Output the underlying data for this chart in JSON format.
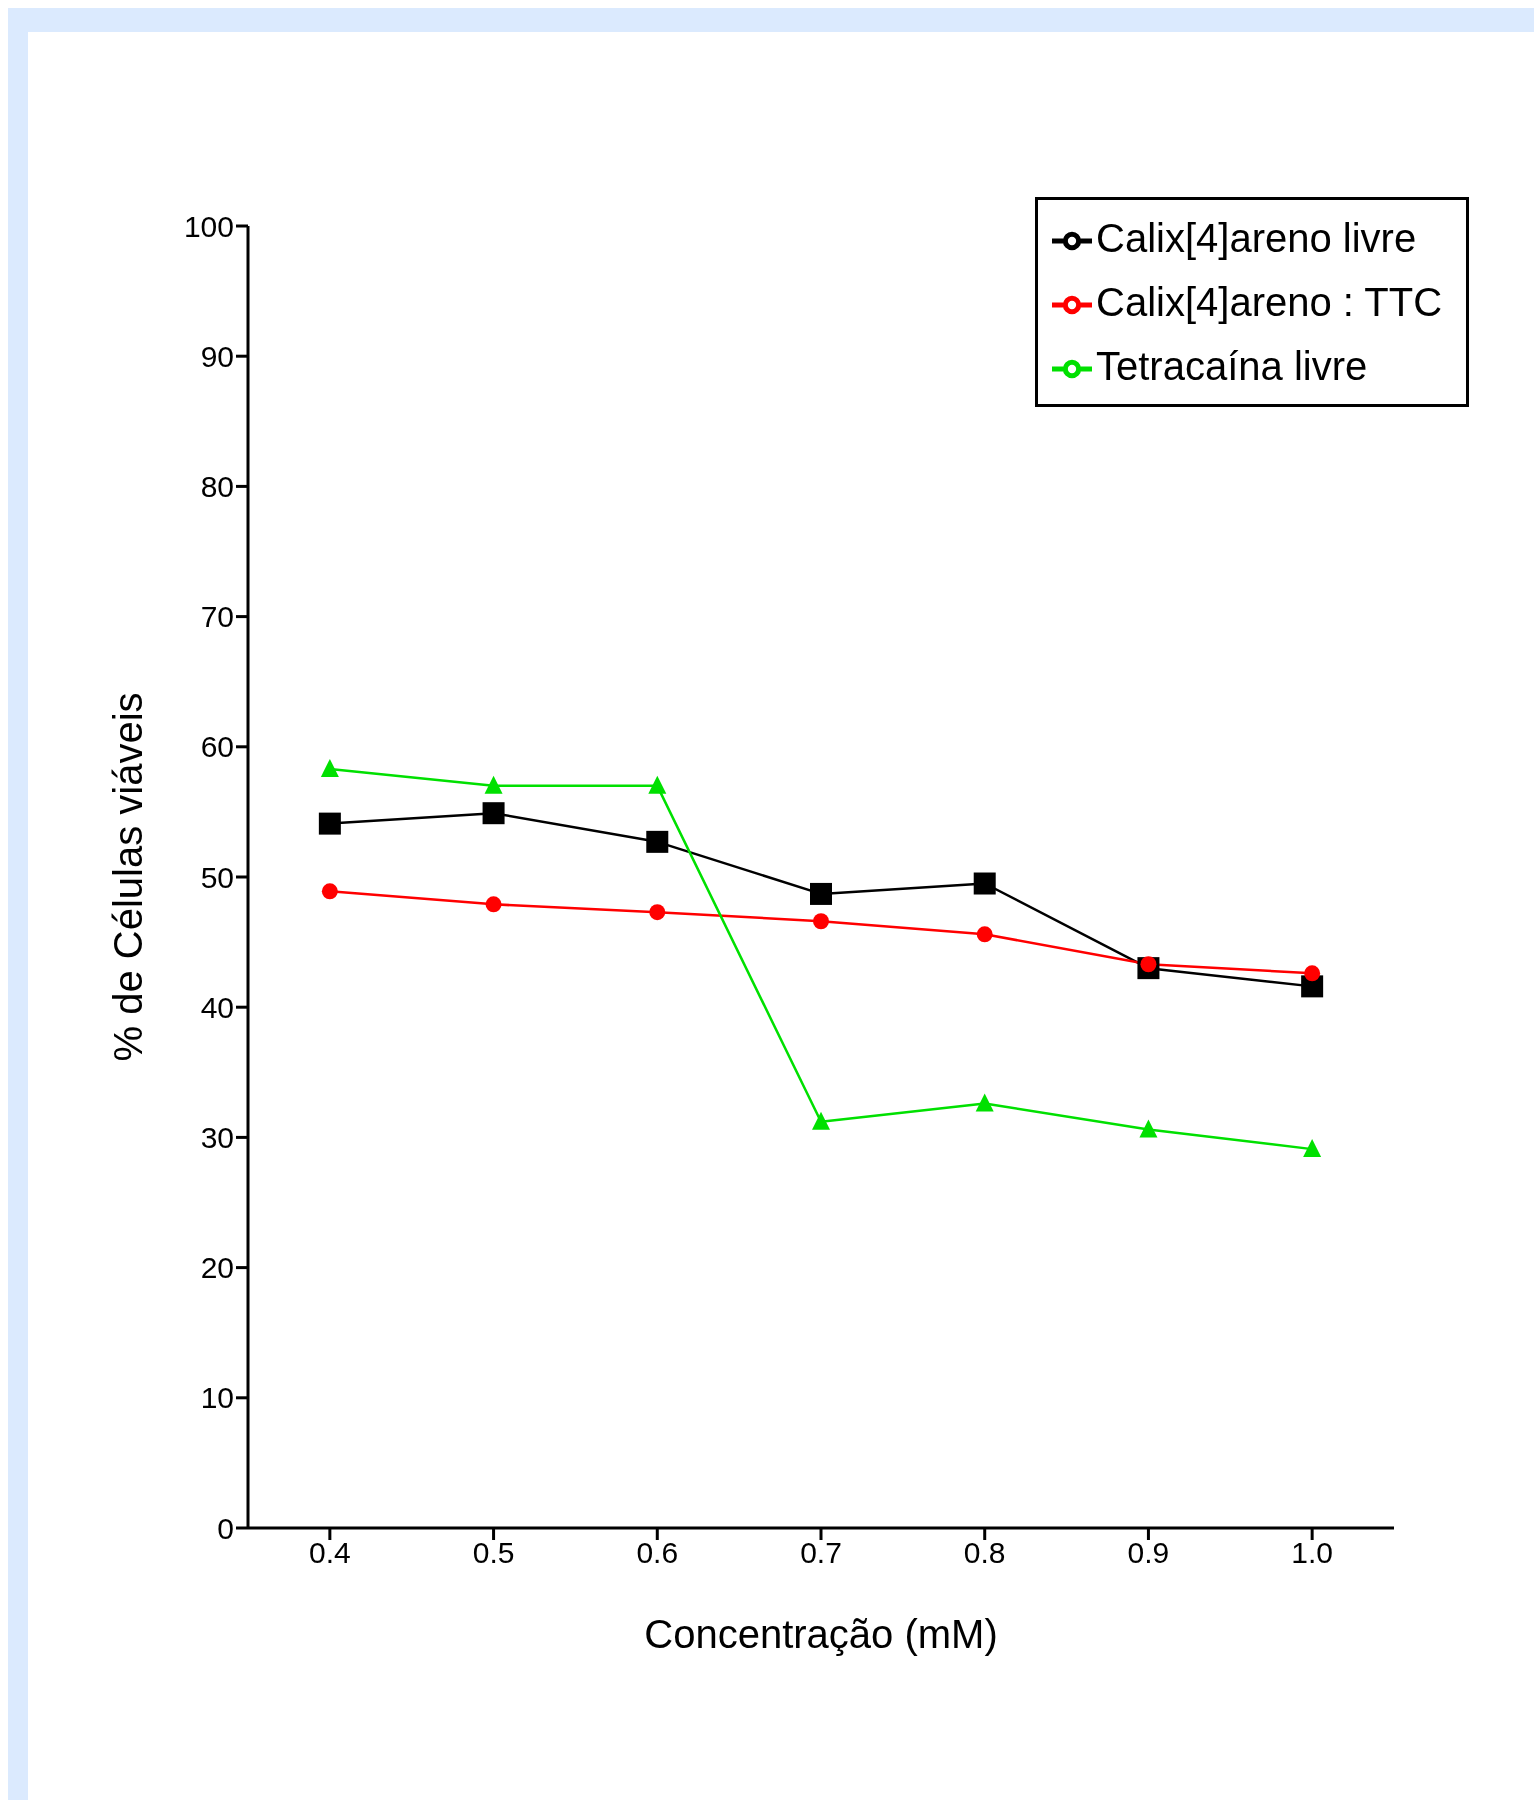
{
  "chart_data": {
    "type": "line",
    "xlabel": "Concentração (mM)",
    "ylabel": "% de Células viáveis",
    "x": [
      0.4,
      0.5,
      0.6,
      0.7,
      0.8,
      0.9,
      1.0
    ],
    "series": [
      {
        "name": "Calix[4]areno livre",
        "color": "#000000",
        "marker": "square",
        "values": [
          54.1,
          54.9,
          52.7,
          48.7,
          49.5,
          43.0,
          41.6
        ]
      },
      {
        "name": "Calix[4]areno : TTC",
        "color": "#ff0000",
        "marker": "circle",
        "values": [
          48.9,
          47.9,
          47.3,
          46.6,
          45.6,
          43.3,
          42.6
        ]
      },
      {
        "name": "Tetracaína livre",
        "color": "#00e000",
        "marker": "triangle",
        "values": [
          58.3,
          57.0,
          57.0,
          31.2,
          32.6,
          30.6,
          29.1
        ]
      }
    ],
    "xlim": [
      0.35,
      1.05
    ],
    "xticks": [
      0.4,
      0.5,
      0.6,
      0.7,
      0.8,
      0.9,
      {
        "value": 1.0,
        "label": "1.0"
      }
    ],
    "ylim": [
      0,
      100
    ],
    "yticks": [
      0,
      10,
      20,
      30,
      40,
      50,
      60,
      70,
      80,
      90,
      100
    ],
    "grid": false,
    "legend": "top right",
    "line_style": "solid"
  }
}
